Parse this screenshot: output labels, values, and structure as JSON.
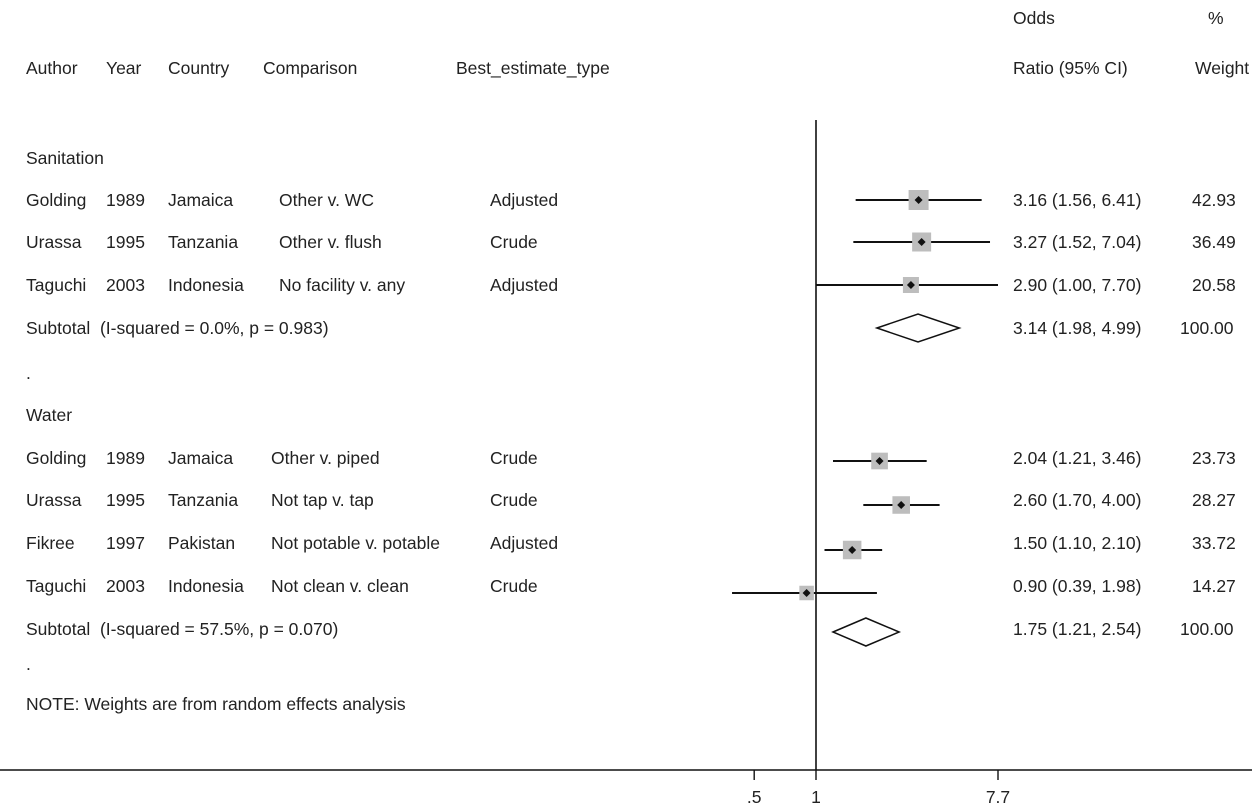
{
  "header": {
    "author": "Author",
    "year": "Year",
    "country": "Country",
    "comparison": "Comparison",
    "best_estimate": "Best_estimate_type",
    "or_line1": "Odds",
    "or_line2": "Ratio (95% CI)",
    "weight_line1": "%",
    "weight_line2": "Weight"
  },
  "groups": [
    {
      "label": "Sanitation",
      "studies": [
        {
          "author": "Golding",
          "year": "1989",
          "country": "Jamaica",
          "comparison": "Other v. WC",
          "best_estimate": "Adjusted",
          "ci_text": "3.16 (1.56, 6.41)",
          "weight_text": "42.93",
          "or": 3.16,
          "lo": 1.56,
          "hi": 6.41,
          "weight": 42.93
        },
        {
          "author": "Urassa",
          "year": "1995",
          "country": "Tanzania",
          "comparison": "Other v. flush",
          "best_estimate": "Crude",
          "ci_text": "3.27 (1.52, 7.04)",
          "weight_text": "36.49",
          "or": 3.27,
          "lo": 1.52,
          "hi": 7.04,
          "weight": 36.49
        },
        {
          "author": "Taguchi",
          "year": "2003",
          "country": "Indonesia",
          "comparison": "No facility v. any",
          "best_estimate": "Adjusted",
          "ci_text": "2.90 (1.00, 7.70)",
          "weight_text": "20.58",
          "or": 2.9,
          "lo": 1.0,
          "hi": 7.7,
          "weight": 20.58
        }
      ],
      "subtotal": {
        "label": "Subtotal  (I-squared = 0.0%, p = 0.983)",
        "ci_text": "3.14 (1.98, 4.99)",
        "weight_text": "100.00",
        "or": 3.14,
        "lo": 1.98,
        "hi": 4.99
      }
    },
    {
      "label": "Water",
      "studies": [
        {
          "author": "Golding",
          "year": "1989",
          "country": "Jamaica",
          "comparison": "Other v. piped",
          "best_estimate": "Crude",
          "ci_text": "2.04 (1.21, 3.46)",
          "weight_text": "23.73",
          "or": 2.04,
          "lo": 1.21,
          "hi": 3.46,
          "weight": 23.73
        },
        {
          "author": "Urassa",
          "year": "1995",
          "country": "Tanzania",
          "comparison": "Not tap v. tap",
          "best_estimate": "Crude",
          "ci_text": "2.60 (1.70, 4.00)",
          "weight_text": "28.27",
          "or": 2.6,
          "lo": 1.7,
          "hi": 4.0,
          "weight": 28.27
        },
        {
          "author": "Fikree",
          "year": "1997",
          "country": "Pakistan",
          "comparison": "Not potable v. potable",
          "best_estimate": "Adjusted",
          "ci_text": "1.50 (1.10, 2.10)",
          "weight_text": "33.72",
          "or": 1.5,
          "lo": 1.1,
          "hi": 2.1,
          "weight": 33.72
        },
        {
          "author": "Taguchi",
          "year": "2003",
          "country": "Indonesia",
          "comparison": "Not clean v. clean",
          "best_estimate": "Crude",
          "ci_text": "0.90 (0.39, 1.98)",
          "weight_text": "14.27",
          "or": 0.9,
          "lo": 0.39,
          "hi": 1.98,
          "weight": 14.27
        }
      ],
      "subtotal": {
        "label": "Subtotal  (I-squared = 57.5%, p = 0.070)",
        "ci_text": "1.75 (1.21, 2.54)",
        "weight_text": "100.00",
        "or": 1.75,
        "lo": 1.21,
        "hi": 2.54
      }
    }
  ],
  "separator": ".",
  "note": "NOTE: Weights are from random effects analysis",
  "colors": {
    "text": "#222222",
    "box": "#bdbdbd",
    "line": "#111111"
  },
  "chart_data": {
    "type": "forest",
    "x_scale": "log",
    "xlim": [
      0.39,
      7.7
    ],
    "xticks": [
      {
        "value": 0.5,
        "label": ".5"
      },
      {
        "value": 1,
        "label": "1"
      },
      {
        "value": 7.7,
        "label": "7.7"
      }
    ],
    "reference_line": 1,
    "series": [
      {
        "group": "Sanitation",
        "study": "Golding 1989",
        "or": 3.16,
        "lo": 1.56,
        "hi": 6.41,
        "weight": 42.93
      },
      {
        "group": "Sanitation",
        "study": "Urassa 1995",
        "or": 3.27,
        "lo": 1.52,
        "hi": 7.04,
        "weight": 36.49
      },
      {
        "group": "Sanitation",
        "study": "Taguchi 2003",
        "or": 2.9,
        "lo": 1.0,
        "hi": 7.7,
        "weight": 20.58
      },
      {
        "group": "Sanitation",
        "study": "Subtotal",
        "or": 3.14,
        "lo": 1.98,
        "hi": 4.99,
        "weight": 100.0
      },
      {
        "group": "Water",
        "study": "Golding 1989",
        "or": 2.04,
        "lo": 1.21,
        "hi": 3.46,
        "weight": 23.73
      },
      {
        "group": "Water",
        "study": "Urassa 1995",
        "or": 2.6,
        "lo": 1.7,
        "hi": 4.0,
        "weight": 28.27
      },
      {
        "group": "Water",
        "study": "Fikree 1997",
        "or": 1.5,
        "lo": 1.1,
        "hi": 2.1,
        "weight": 33.72
      },
      {
        "group": "Water",
        "study": "Taguchi 2003",
        "or": 0.9,
        "lo": 0.39,
        "hi": 1.98,
        "weight": 14.27
      },
      {
        "group": "Water",
        "study": "Subtotal",
        "or": 1.75,
        "lo": 1.21,
        "hi": 2.54,
        "weight": 100.0
      }
    ]
  }
}
